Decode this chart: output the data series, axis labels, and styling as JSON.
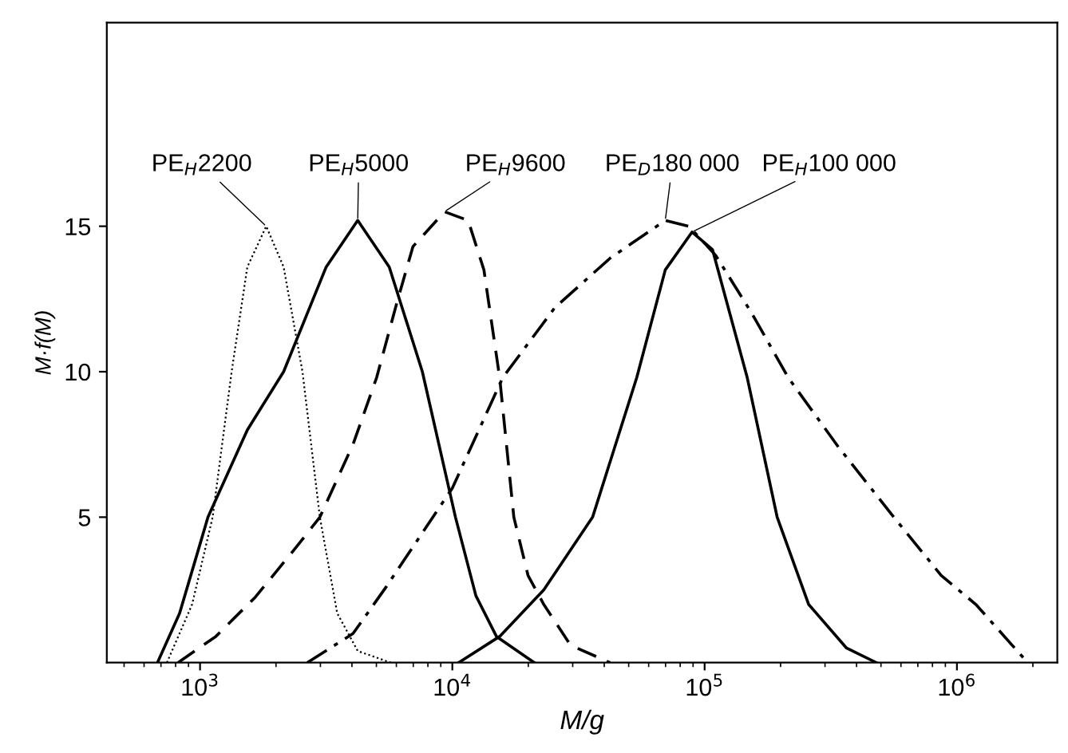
{
  "chart_data": {
    "type": "line",
    "xlabel": "M/g",
    "ylabel": "M·f(M)",
    "log": "x",
    "xlim": [
      427,
      2500000
    ],
    "xticks": [
      {
        "value": 1000,
        "label": "10$^{3}$"
      },
      {
        "value": 10000,
        "label": "10$^{4}$"
      },
      {
        "value": 100000,
        "label": "10$^{5}$"
      },
      {
        "value": 1000000,
        "label": "10$^{6}$"
      }
    ],
    "ylim": [
      0,
      22
    ],
    "yticks": [
      5,
      10,
      15
    ],
    "grid": false,
    "legend": false,
    "marker": "none",
    "series": [
      {
        "name": "PE$_{H}$2200",
        "color": "#000000",
        "line_style": "dotted",
        "x": [
          739,
          930,
          1122,
          1334,
          1540,
          1830,
          2144,
          2547,
          2985,
          3497,
          4217,
          5700
        ],
        "values": [
          0,
          2,
          5,
          10,
          13.6,
          15,
          13.6,
          10,
          5,
          1.7,
          0.4,
          0
        ]
      },
      {
        "name": "PE$_{H}$5000",
        "color": "#000000",
        "line_style": "solid",
        "x": [
          678,
          830,
          1075,
          1540,
          2144,
          3162,
          4217,
          5623,
          7607,
          10290,
          12400,
          14960,
          21130
        ],
        "values": [
          0,
          1.7,
          5,
          8,
          10,
          13.6,
          15.2,
          13.6,
          10,
          5,
          2.3,
          0.9,
          0
        ]
      },
      {
        "name": "PE$_{H}$9600",
        "color": "#000000",
        "line_style": "dashed",
        "x": [
          818,
          1155,
          1655,
          2371,
          2985,
          4040,
          5012,
          6040,
          6980,
          9310,
          11550,
          13340,
          15400,
          17530,
          19950,
          23040,
          29420,
          42170
        ],
        "values": [
          0,
          0.9,
          2.25,
          3.9,
          5,
          7.5,
          9.8,
          12.4,
          14.3,
          15.5,
          15.2,
          13.5,
          9.8,
          5,
          3,
          2,
          0.6,
          0
        ]
      },
      {
        "name": "PE$_{D}$180 000",
        "color": "#000000",
        "line_style": "dashdot",
        "x": [
          2661,
          4040,
          5464,
          10000,
          15850,
          25470,
          42170,
          69820,
          86600,
          110600,
          154000,
          214400,
          339800,
          562300,
          866000,
          1189000,
          1655000,
          1910000
        ],
        "values": [
          0,
          1,
          2.6,
          6,
          9.8,
          12.2,
          13.9,
          15.2,
          15,
          14,
          12,
          9.8,
          7.4,
          5,
          3,
          2,
          0.6,
          0
        ]
      },
      {
        "name": "PE$_{H}$100 000",
        "color": "#000000",
        "line_style": "solid",
        "x": [
          10590,
          15400,
          23040,
          35970,
          53830,
          69820,
          89130,
          107400,
          147500,
          193900,
          258500,
          365200,
          479700
        ],
        "values": [
          0,
          0.9,
          2.5,
          5,
          9.8,
          13.5,
          14.8,
          14.2,
          9.8,
          5,
          2,
          0.5,
          0
        ]
      }
    ]
  }
}
